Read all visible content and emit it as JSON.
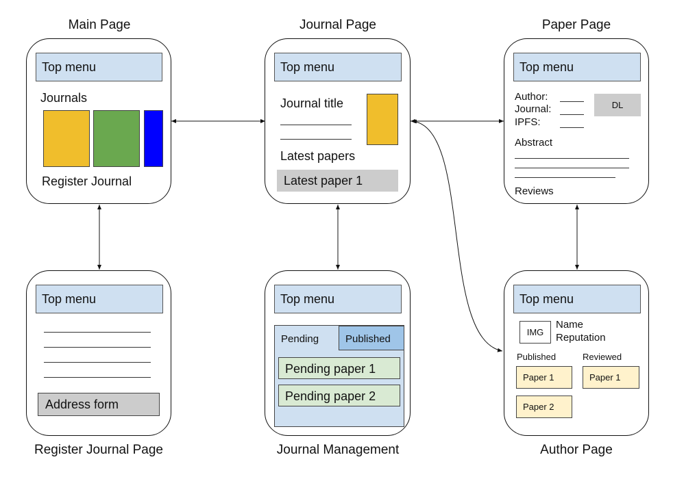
{
  "pages": {
    "main": {
      "title": "Main Page",
      "top_menu": "Top menu",
      "journals_label": "Journals",
      "register_label": "Register Journal",
      "tile_colors": [
        "#f0be2c",
        "#6aa84f",
        "#0000ff"
      ]
    },
    "journal": {
      "title": "Journal Page",
      "top_menu": "Top menu",
      "journal_title": "Journal title",
      "latest_label": "Latest papers",
      "latest_item": "Latest paper 1",
      "cover_color": "#f0be2c"
    },
    "paper": {
      "title": "Paper Page",
      "top_menu": "Top menu",
      "author_label": "Author:",
      "journal_label": "Journal:",
      "ipfs_label": "IPFS:",
      "dl_button": "DL",
      "abstract_label": "Abstract",
      "reviews_label": "Reviews"
    },
    "register": {
      "title": "Register Journal Page",
      "top_menu": "Top menu",
      "address_form": "Address form"
    },
    "management": {
      "title": "Journal Management",
      "top_menu": "Top menu",
      "tab_pending": "Pending",
      "tab_published": "Published",
      "items": [
        "Pending paper 1",
        "Pending paper 2"
      ]
    },
    "author": {
      "title": "Author Page",
      "top_menu": "Top menu",
      "img_label": "IMG",
      "name_label": "Name",
      "reputation_label": "Reputation",
      "published_label": "Published",
      "reviewed_label": "Reviewed",
      "published_items": [
        "Paper 1",
        "Paper 2"
      ],
      "reviewed_items": [
        "Paper 1"
      ]
    }
  },
  "colors": {
    "top_menu_bg": "#cfe0f1",
    "grey_box": "#cccccc",
    "pending_panel_bg": "#cfe0f1",
    "published_tab_bg": "#9fc5e8",
    "pending_item_bg": "#d9ead3",
    "paper_item_bg": "#fff2cc"
  }
}
